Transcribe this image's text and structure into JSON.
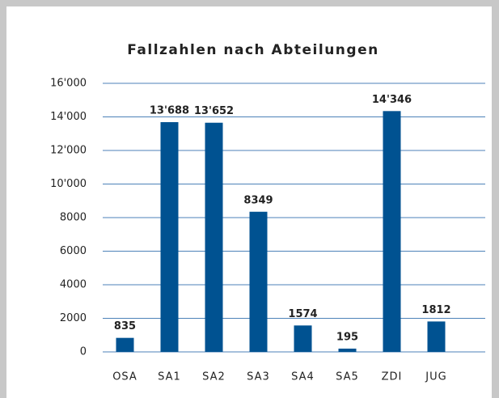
{
  "chart_data": {
    "type": "bar",
    "title": "Fallzahlen nach Abteilungen",
    "categories": [
      "OSA",
      "SA1",
      "SA2",
      "SA3",
      "SA4",
      "SA5",
      "ZDI",
      "JUG"
    ],
    "values": [
      835,
      13688,
      13652,
      8349,
      1574,
      195,
      14346,
      1812
    ],
    "value_labels": [
      "835",
      "13'688",
      "13'652",
      "8349",
      "1574",
      "195",
      "14'346",
      "1812"
    ],
    "color": "#005291",
    "ylim": [
      0,
      16000
    ],
    "yticks": [
      0,
      2000,
      4000,
      6000,
      8000,
      {
        "value": 10000,
        "label": "10'000"
      },
      {
        "value": 12000,
        "label": "12'000"
      },
      {
        "value": 14000,
        "label": "14'000"
      },
      {
        "value": 16000,
        "label": "16'000"
      }
    ],
    "grid": true
  }
}
